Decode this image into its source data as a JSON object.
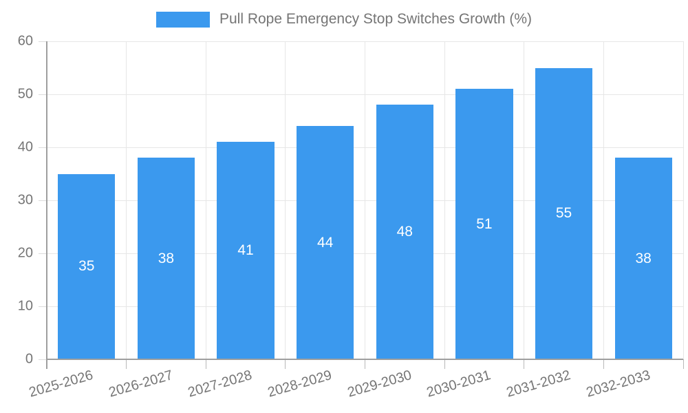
{
  "chart_data": {
    "type": "bar",
    "title": "Pull Rope Emergency Stop Switches Growth (%)",
    "categories": [
      "2025-2026",
      "2026-2027",
      "2027-2028",
      "2028-2029",
      "2029-2030",
      "2030-2031",
      "2031-2032",
      "2032-2033"
    ],
    "values": [
      35,
      38,
      41,
      44,
      48,
      51,
      55,
      38
    ],
    "series_name": "Pull Rope Emergency Stop Switches Growth (%)",
    "xlabel": "",
    "ylabel": "",
    "ylim": [
      0,
      60
    ],
    "yticks": [
      0,
      10,
      20,
      30,
      40,
      50,
      60
    ],
    "grid": true,
    "legend_position": "top",
    "colors": {
      "bar": "#3b99ee",
      "bar_value_label": "#ffffff",
      "axis_text": "#757575",
      "gridline": "#e6e6e6",
      "axis_line": "#9e9e9e",
      "background": "#ffffff"
    }
  }
}
